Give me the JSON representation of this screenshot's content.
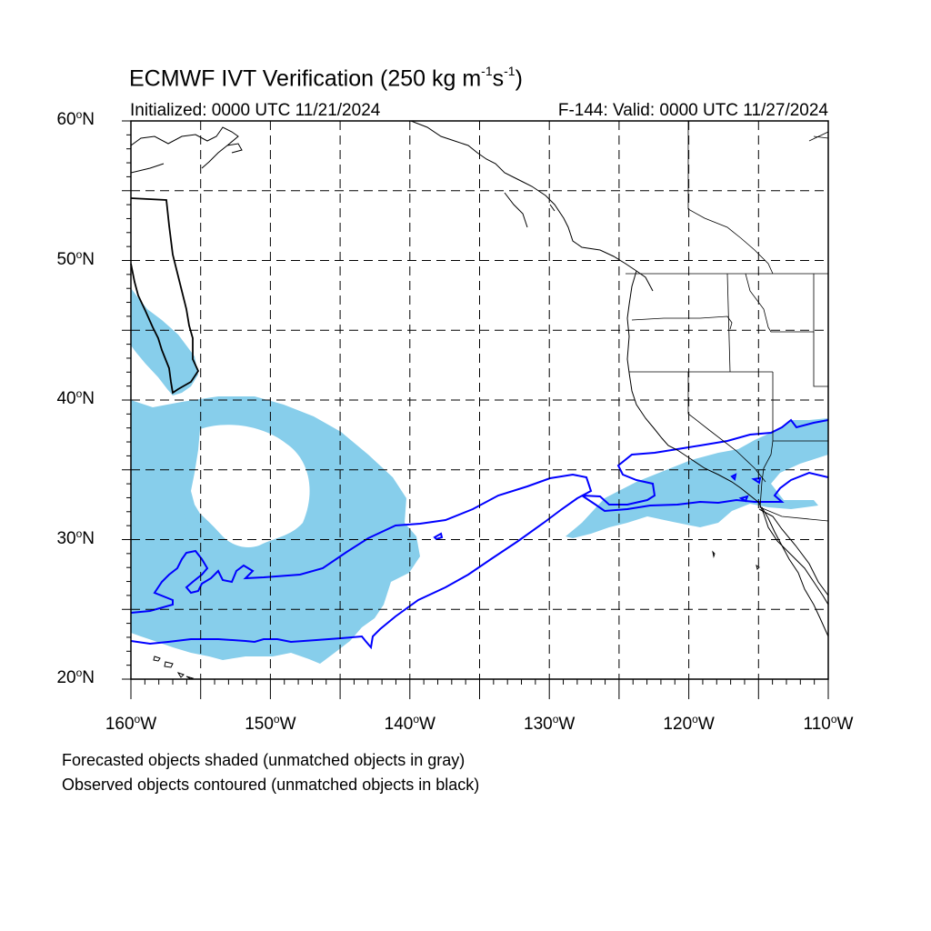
{
  "header": {
    "title_main": "ECMWF IVT Verification (250 kg m",
    "title_sup1": "-1",
    "title_mid": "s",
    "title_sup2": "-1",
    "title_end": ")",
    "initialized": "Initialized: 0000 UTC 11/21/2024",
    "valid": "F-144: Valid: 0000 UTC 11/27/2024"
  },
  "axes": {
    "lat_labels": [
      {
        "value": 60,
        "text": "60",
        "suffix": "N"
      },
      {
        "value": 50,
        "text": "50",
        "suffix": "N"
      },
      {
        "value": 40,
        "text": "40",
        "suffix": "N"
      },
      {
        "value": 30,
        "text": "30",
        "suffix": "N"
      },
      {
        "value": 20,
        "text": "20",
        "suffix": "N"
      }
    ],
    "lon_labels": [
      {
        "value": -160,
        "text": "160",
        "suffix": "W"
      },
      {
        "value": -150,
        "text": "150",
        "suffix": "W"
      },
      {
        "value": -140,
        "text": "140",
        "suffix": "W"
      },
      {
        "value": -130,
        "text": "130",
        "suffix": "W"
      },
      {
        "value": -120,
        "text": "120",
        "suffix": "W"
      },
      {
        "value": -110,
        "text": "110",
        "suffix": "W"
      }
    ],
    "degree_symbol": "o"
  },
  "legend": {
    "forecast_note": "Forecasted objects shaded (unmatched objects in gray)",
    "observed_note": "Observed objects contoured (unmatched objects in black)"
  },
  "colors": {
    "forecast_fill": "#87ceeb",
    "observed_contour": "#0000ff",
    "coastline": "#000000",
    "gridline": "#000000"
  }
}
